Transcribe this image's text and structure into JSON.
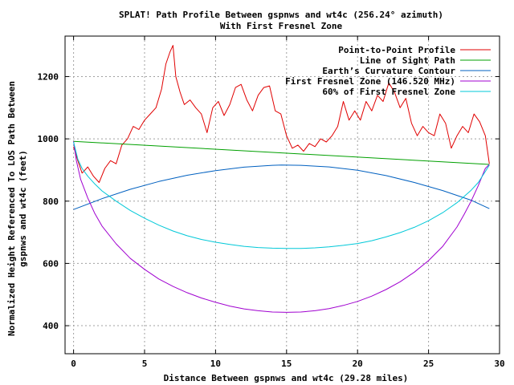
{
  "chart_data": {
    "type": "line",
    "title": "SPLAT! Path Profile Between gspnws and wt4c (256.24° azimuth)",
    "subtitle": "With First Fresnel Zone",
    "xlabel": "Distance Between gspnws and wt4c (29.28 miles)",
    "ylabel_lines": [
      "Normalized Height Referenced To LOS Path Between",
      "gspnws and wt4c (feet)"
    ],
    "xlim": [
      -0.6,
      30
    ],
    "ylim": [
      310,
      1330
    ],
    "xticks": [
      0,
      5,
      10,
      15,
      20,
      25,
      30
    ],
    "yticks": [
      400,
      600,
      800,
      1000,
      1200
    ],
    "grid": true,
    "legend_position": "top-right",
    "series": [
      {
        "name": "Point-to-Point Profile",
        "color": "#e00000",
        "x": [
          0,
          0.3,
          0.6,
          1.0,
          1.4,
          1.8,
          2.2,
          2.6,
          3.0,
          3.4,
          3.8,
          4.2,
          4.6,
          5.0,
          5.4,
          5.8,
          6.2,
          6.5,
          6.8,
          7.0,
          7.2,
          7.5,
          7.8,
          8.2,
          8.6,
          9.0,
          9.4,
          9.8,
          10.2,
          10.6,
          11.0,
          11.4,
          11.8,
          12.2,
          12.6,
          13.0,
          13.4,
          13.8,
          14.2,
          14.6,
          15.0,
          15.4,
          15.8,
          16.2,
          16.6,
          17.0,
          17.4,
          17.8,
          18.2,
          18.6,
          19.0,
          19.4,
          19.8,
          20.2,
          20.6,
          21.0,
          21.4,
          21.8,
          22.2,
          22.6,
          23.0,
          23.4,
          23.8,
          24.2,
          24.6,
          25.0,
          25.4,
          25.8,
          26.2,
          26.6,
          27.0,
          27.4,
          27.8,
          28.2,
          28.6,
          29.0,
          29.28
        ],
        "y": [
          975,
          930,
          890,
          910,
          880,
          860,
          905,
          930,
          920,
          980,
          1000,
          1040,
          1030,
          1060,
          1080,
          1100,
          1160,
          1240,
          1280,
          1300,
          1200,
          1150,
          1110,
          1125,
          1100,
          1080,
          1020,
          1100,
          1120,
          1075,
          1110,
          1165,
          1175,
          1125,
          1090,
          1140,
          1165,
          1170,
          1090,
          1080,
          1010,
          970,
          980,
          960,
          985,
          975,
          1000,
          990,
          1010,
          1040,
          1120,
          1060,
          1090,
          1060,
          1120,
          1090,
          1140,
          1120,
          1180,
          1150,
          1100,
          1130,
          1050,
          1010,
          1040,
          1020,
          1010,
          1080,
          1050,
          970,
          1010,
          1040,
          1020,
          1080,
          1055,
          1010,
          920
        ]
      },
      {
        "name": "Line of Sight Path",
        "color": "#00a000",
        "x": [
          0,
          29.28
        ],
        "y": [
          992,
          918
        ]
      },
      {
        "name": "Earth’s Curvature Contour",
        "color": "#0060c0",
        "x": [
          0,
          2,
          4,
          6,
          8,
          10,
          12,
          14,
          14.64,
          16,
          18,
          20,
          22,
          24,
          26,
          28,
          29.28
        ],
        "y": [
          773,
          808,
          838,
          863,
          883,
          898,
          909,
          915,
          916,
          915,
          910,
          899,
          882,
          860,
          834,
          803,
          776
        ]
      },
      {
        "name": "First Fresnel Zone (146.520 MHz)",
        "color": "#a000d0",
        "x": [
          0,
          0.2,
          0.5,
          1,
          1.5,
          2,
          3,
          4,
          5,
          6,
          7,
          8,
          9,
          10,
          11,
          12,
          13,
          14,
          15,
          16,
          17,
          18,
          19,
          20,
          21,
          22,
          23,
          24,
          25,
          26,
          27,
          27.5,
          28,
          28.5,
          29,
          29.28
        ],
        "y": [
          992,
          930,
          870,
          810,
          760,
          720,
          663,
          616,
          581,
          550,
          526,
          506,
          489,
          475,
          463,
          454,
          448,
          444,
          443,
          444,
          448,
          455,
          465,
          478,
          495,
          516,
          541,
          572,
          609,
          655,
          717,
          757,
          800,
          850,
          905,
          918
        ]
      },
      {
        "name": "60% of First Fresnel Zone",
        "color": "#00c8d8",
        "x": [
          0,
          0.3,
          0.6,
          1,
          1.5,
          2,
          3,
          4,
          5,
          6,
          7,
          8,
          9,
          10,
          11,
          12,
          13,
          14,
          15,
          16,
          17,
          18,
          19,
          20,
          21,
          22,
          23,
          24,
          25,
          26,
          27,
          28,
          28.5,
          29,
          29.28
        ],
        "y": [
          990,
          935,
          905,
          880,
          855,
          833,
          800,
          770,
          745,
          723,
          704,
          689,
          677,
          668,
          661,
          655,
          651,
          649,
          648,
          648,
          650,
          653,
          658,
          664,
          673,
          685,
          699,
          716,
          737,
          763,
          795,
          835,
          860,
          895,
          916
        ]
      }
    ]
  }
}
